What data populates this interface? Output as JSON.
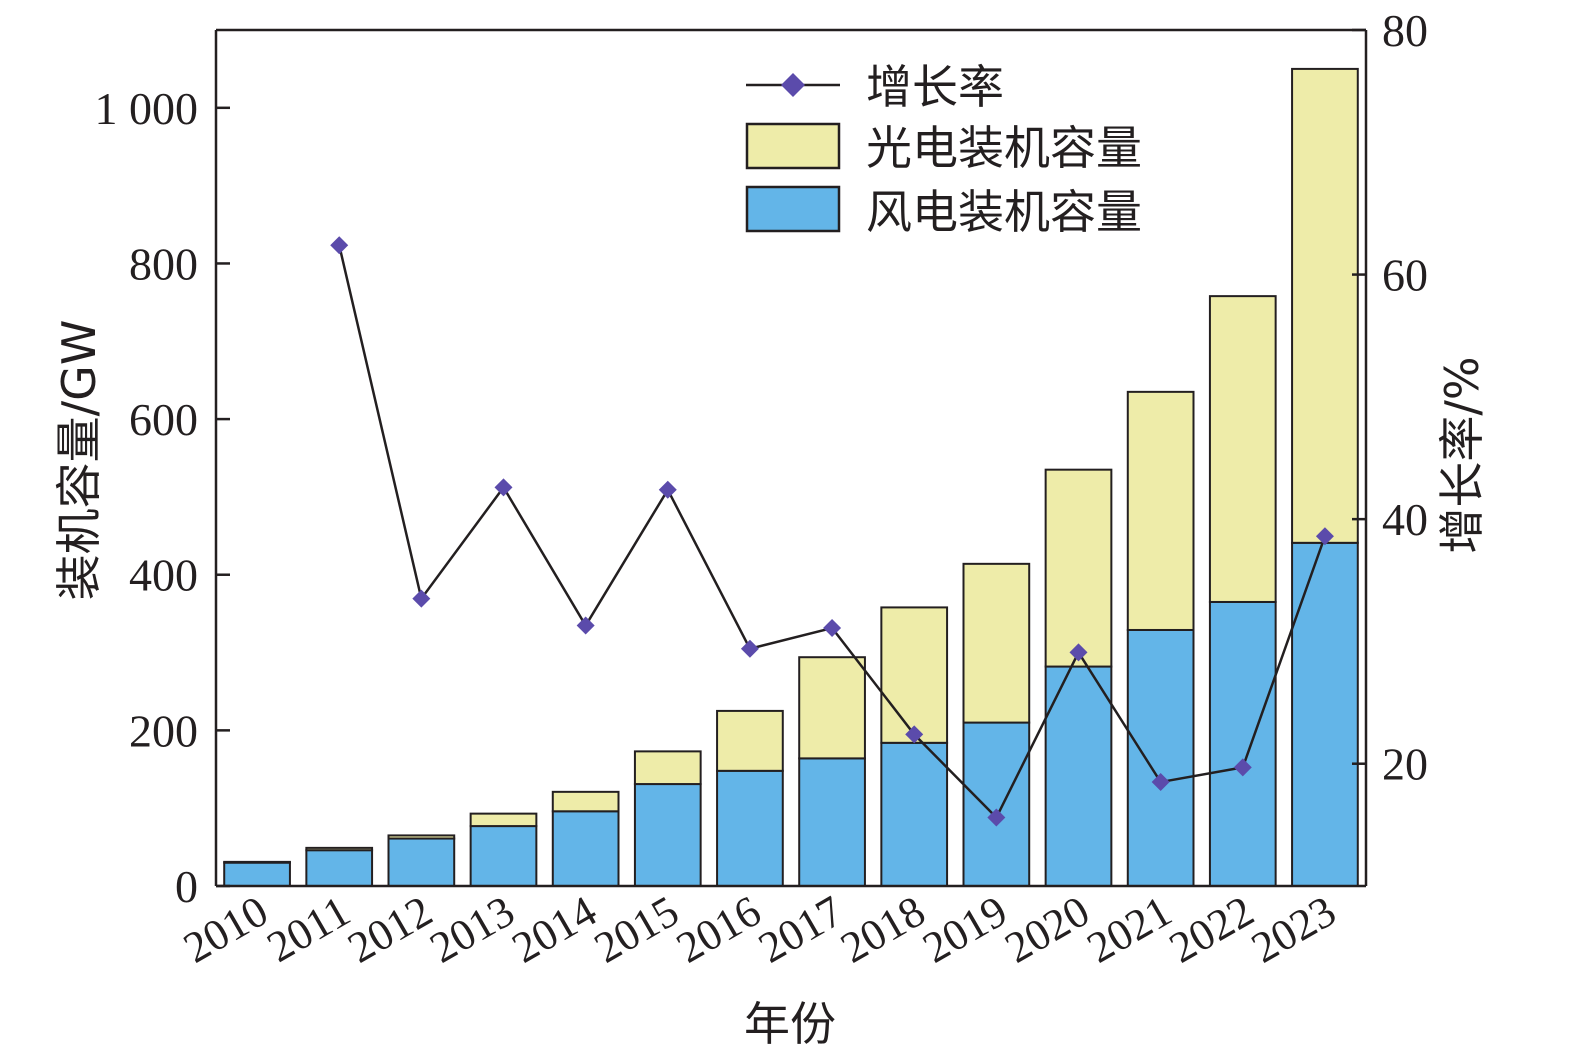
{
  "chart_data": {
    "type": "bar",
    "stacked": true,
    "xlabel": "年份",
    "ylabel": "装机容量/GW",
    "y2label": "增长率/%",
    "categories": [
      "2010",
      "2011",
      "2012",
      "2013",
      "2014",
      "2015",
      "2016",
      "2017",
      "2018",
      "2019",
      "2020",
      "2021",
      "2022",
      "2023"
    ],
    "ylim": [
      0,
      1100
    ],
    "y_ticks": [
      0,
      200,
      400,
      600,
      800,
      1000
    ],
    "y_tick_labels": [
      "0",
      "200",
      "400",
      "600",
      "800",
      "1 000"
    ],
    "y2lim": [
      10,
      80
    ],
    "y2_ticks": [
      20,
      40,
      60,
      80
    ],
    "y2_tick_labels": [
      "20",
      "40",
      "60",
      "80"
    ],
    "series": [
      {
        "name": "风电装机容量",
        "color": "#63b5e8",
        "values": [
          30,
          46,
          61,
          77,
          96,
          131,
          148,
          164,
          184,
          210,
          282,
          329,
          365,
          441
        ]
      },
      {
        "name": "光电装机容量",
        "color": "#eeeca9",
        "values": [
          1,
          3,
          4,
          16,
          25,
          42,
          77,
          130,
          174,
          204,
          253,
          306,
          393,
          609
        ]
      },
      {
        "name": "增长率",
        "type": "line",
        "axis": "right",
        "color": "#5b4bab",
        "marker": "diamond",
        "values": [
          null,
          62.4,
          33.5,
          42.6,
          31.3,
          42.4,
          29.4,
          31.1,
          22.4,
          15.6,
          29.1,
          18.5,
          19.7,
          38.6
        ]
      }
    ],
    "legend": {
      "placement": "top-center",
      "items": [
        "增长率",
        "光电装机容量",
        "风电装机容量"
      ]
    }
  }
}
